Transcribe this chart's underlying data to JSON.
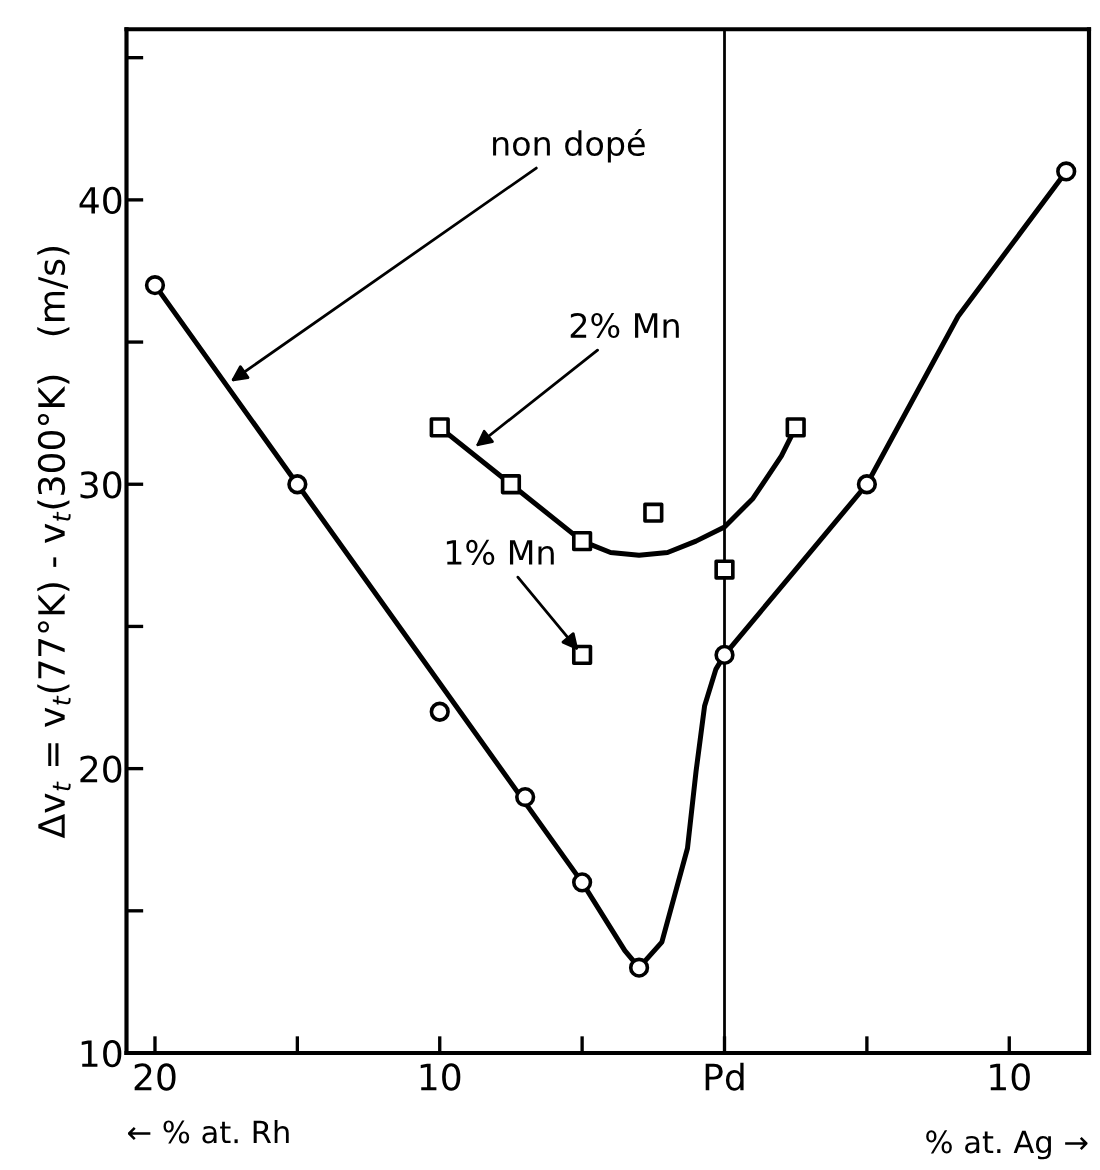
{
  "chart_data": {
    "type": "line",
    "ylabel": "Δv$_{t}$ = v$_{t}$(77°K) - v$_{t}$(300°K)   (m/s)",
    "xlabel": "← % at. Rh",
    "xlim": [
      -21,
      12.8
    ],
    "ylim": [
      10,
      46
    ],
    "xticks": [
      {
        "value": -20,
        "label": "20"
      },
      {
        "value": -15,
        "label": null
      },
      {
        "value": -10,
        "label": "10"
      },
      {
        "value": -5,
        "label": null
      },
      {
        "value": 0,
        "label": "Pd"
      },
      {
        "value": 5,
        "label": null
      },
      {
        "value": 10,
        "label": "10"
      }
    ],
    "yticks": [
      10,
      {
        "value": 15,
        "label": null
      },
      20,
      {
        "value": 25,
        "label": null
      },
      30,
      {
        "value": 35,
        "label": null
      },
      40,
      {
        "value": 45,
        "label": null
      }
    ],
    "grid": false,
    "legend": false,
    "ref_lines": [
      {
        "axis": "x",
        "value": 0,
        "color": "#000000"
      }
    ],
    "series": [
      {
        "type": "scatter",
        "marker": "circle",
        "color": "#000000",
        "x": [
          -20,
          -15,
          -10,
          -7,
          -5,
          -3,
          0,
          5,
          12
        ],
        "values": [
          37,
          30,
          22,
          19,
          16,
          13,
          24,
          30,
          41
        ]
      },
      {
        "marker": "none",
        "color": "#000000",
        "x": [
          -20,
          -15,
          -10,
          -5,
          -3.5,
          -3,
          -2.2,
          -1.3,
          -1.0,
          -0.7,
          -0.3,
          0,
          2.5,
          5,
          8.2,
          12
        ],
        "values": [
          37,
          30,
          23,
          16,
          13.6,
          13,
          13.9,
          17.2,
          19.9,
          22.2,
          23.5,
          24,
          27,
          30,
          35.9,
          41
        ]
      },
      {
        "type": "scatter",
        "marker": "square",
        "color": "#000000",
        "x": [
          -10,
          -7.5,
          -5,
          -2.5,
          0,
          2.5
        ],
        "values": [
          32,
          30,
          28,
          29,
          27,
          32
        ]
      },
      {
        "marker": "none",
        "color": "#000000",
        "x": [
          -10,
          -7.5,
          -5,
          -4,
          -3,
          -2,
          -1,
          0,
          1,
          2,
          2.5
        ],
        "values": [
          32,
          30,
          28,
          27.6,
          27.5,
          27.6,
          28,
          28.5,
          29.5,
          31,
          32
        ]
      },
      {
        "type": "scatter",
        "marker": "square",
        "color": "#000000",
        "x": [
          -5
        ],
        "values": [
          24
        ]
      }
    ],
    "annotations": [
      {
        "text": "non dopé",
        "x": -17.5,
        "y": 33.5
      },
      {
        "text": "2% Mn",
        "x": -8.9,
        "y": 31.2
      },
      {
        "text": "1% Mn",
        "x": -5,
        "y": 24
      },
      "% at. Ag →"
    ]
  }
}
